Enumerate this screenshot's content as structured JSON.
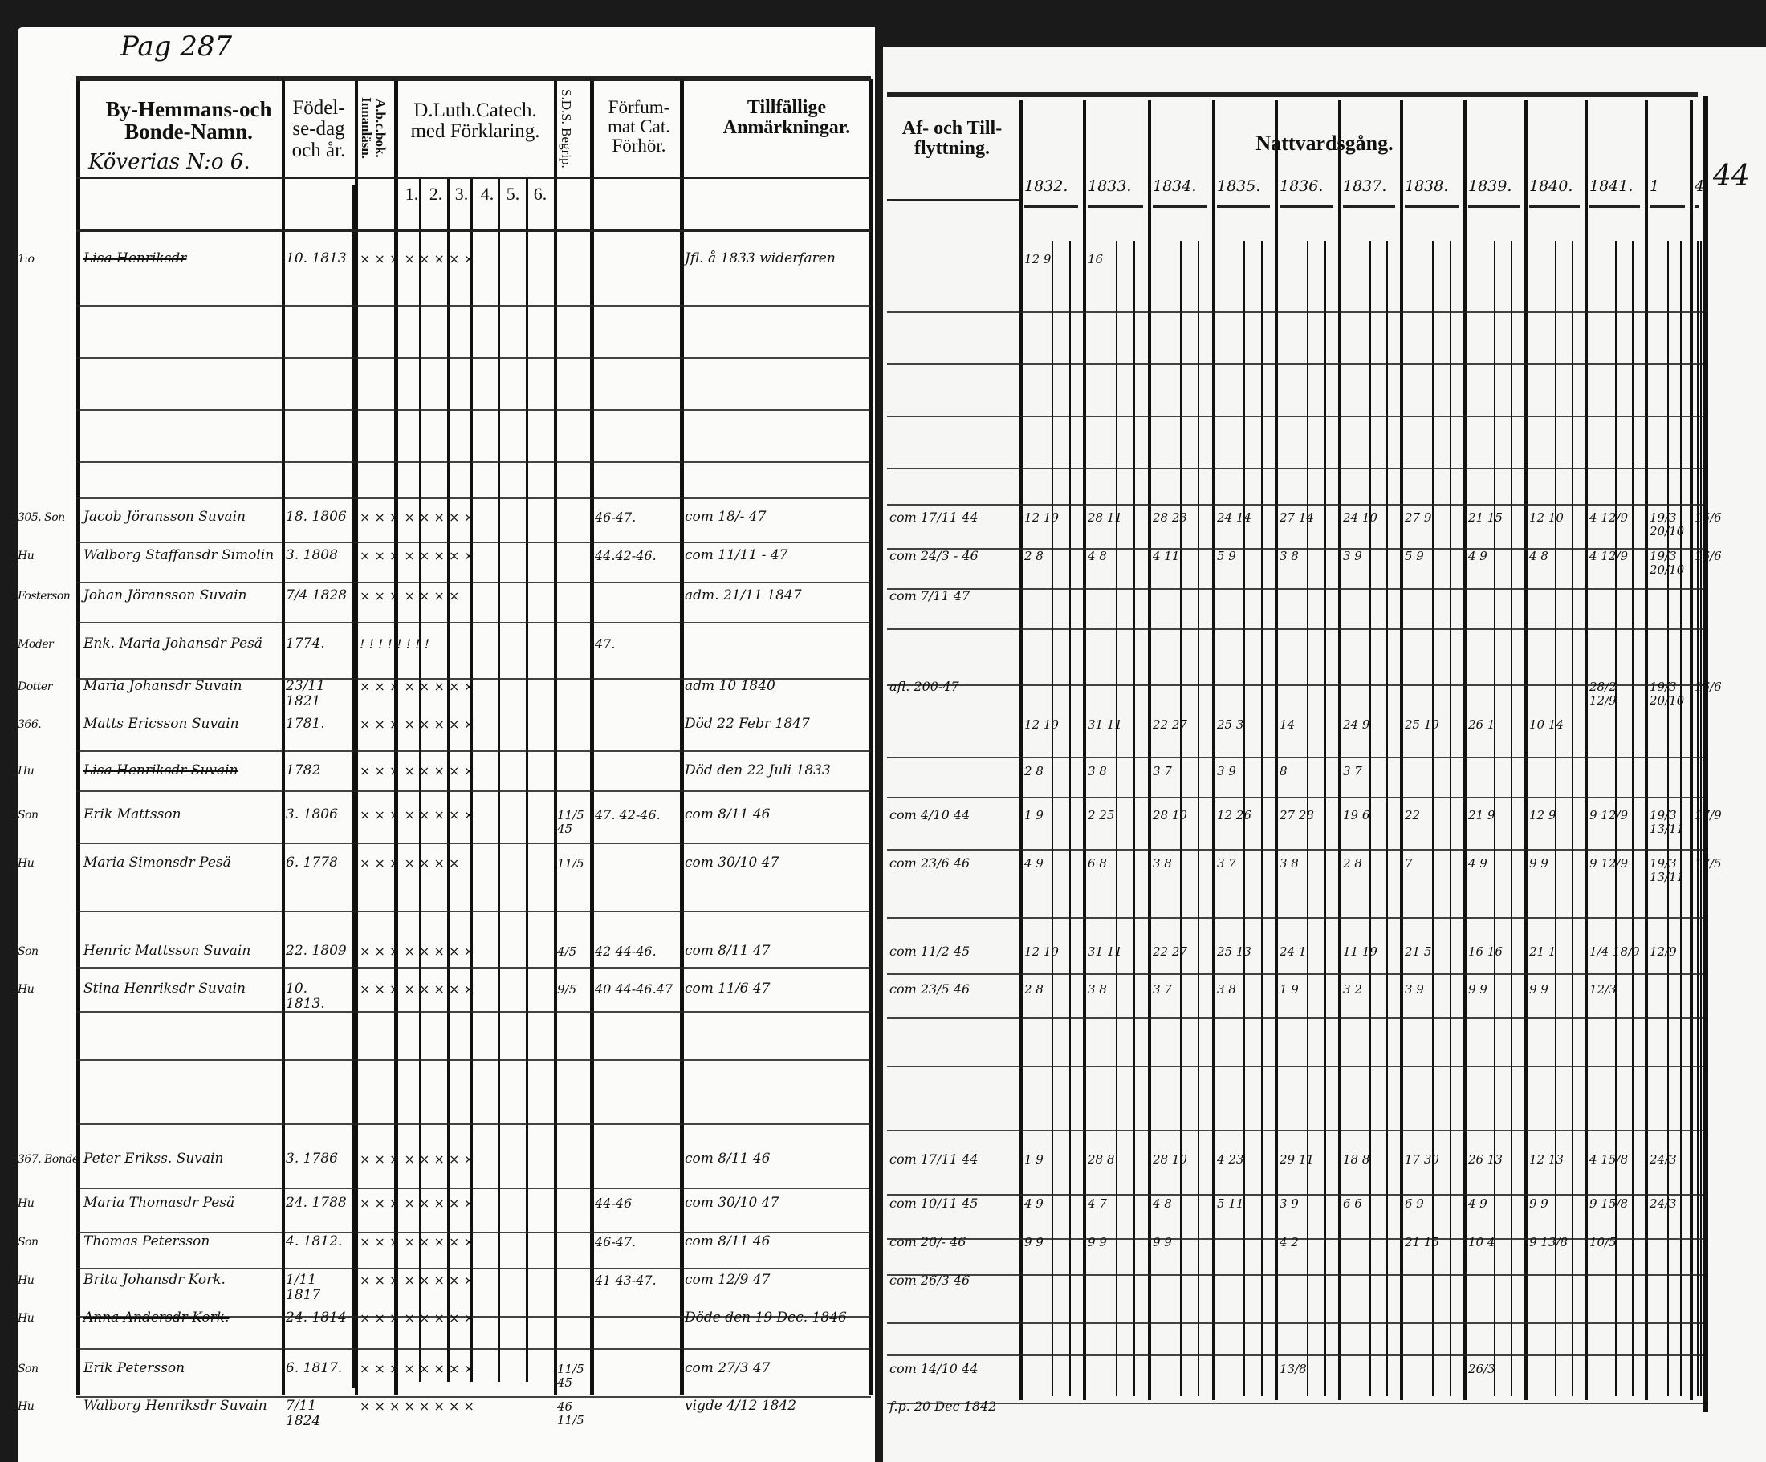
{
  "left_page": {
    "page_number": "Pag 287",
    "village": "Köverias N:o 6.",
    "headers": {
      "names": "By-Hemmans-och Bonde-Namn.",
      "birth": "Födel-se-dag och år.",
      "abc": "A.b.c.bok. Innanläsn.",
      "catechism": "D.Luth.Catech. med Förklaring.",
      "catechism_parts": [
        "1.",
        "2.",
        "3.",
        "4.",
        "5.",
        "6."
      ],
      "sds": "S.D.S. Begrip.",
      "forhor": "Förfum-mat Cat. Förhör.",
      "remarks": "Tillfällige Anmärkningar."
    }
  },
  "right_page": {
    "headers": {
      "moves": "Af- och Till-flyttning.",
      "communion": "Nattvardsgång.",
      "years": [
        "1832.",
        "1833.",
        "1834.",
        "1835.",
        "1836.",
        "1837.",
        "1838.",
        "1839.",
        "1840.",
        "1841.",
        "1",
        "4"
      ],
      "corner": "44"
    }
  },
  "rows": [
    {
      "margin": "1:o",
      "name": "Lisa Henriksdr",
      "crossed": true,
      "birth": "10. 1813",
      "marks": "× ×  ×  ×  ×  ×  ×  ×",
      "sds": "",
      "forhor": "",
      "remark": "Jfl. å 1833 widerfaren",
      "moves": "",
      "communion": [
        "12 9",
        "16"
      ]
    },
    {
      "margin": "305. Son",
      "name": "Jacob Jöransson Suvain",
      "crossed": false,
      "birth": "18. 1806",
      "marks": "× ×  ×  ×  ×  ×  ×  ×",
      "sds": "",
      "forhor": "46-47.",
      "remark": "com 18/- 47",
      "moves": "com 17/11 44",
      "communion": [
        "12 19",
        "28 11",
        "28 23",
        "24 14",
        "27 14",
        "24 10",
        "27 9",
        "21 15",
        "12 10",
        "4 12/9",
        "19/3 20/10",
        "16/6"
      ]
    },
    {
      "margin": "Hu",
      "name": "Walborg Staffansdr Simolin",
      "crossed": false,
      "birth": "3. 1808",
      "marks": "× ×  ×  ×  ×  ×  ×  ×",
      "sds": "",
      "forhor": "44.42-46.",
      "remark": "com 11/11 - 47",
      "moves": "com 24/3 - 46",
      "communion": [
        "2 8",
        "4 8",
        "4 11",
        "5 9",
        "3 8",
        "3 9",
        "5 9",
        "4 9",
        "4 8",
        "4 12/9",
        "19/3 20/10",
        "16/6"
      ]
    },
    {
      "margin": "Fosterson",
      "name": "Johan Jöransson Suvain",
      "crossed": false,
      "birth": "7/4 1828",
      "marks": "× ×  ×  ×  ×  ×  ×",
      "sds": "",
      "forhor": "",
      "remark": "adm. 21/11 1847",
      "moves": "com 7/11 47",
      "communion": []
    },
    {
      "margin": "Moder",
      "name": "Enk. Maria Johansdr Pesä",
      "crossed": false,
      "birth": "1774.",
      "marks": "! !  !  !  !  !  !  !",
      "sds": "",
      "forhor": "47.",
      "remark": "",
      "moves": "",
      "communion": []
    },
    {
      "margin": "Dotter",
      "name": "Maria Johansdr Suvain",
      "crossed": false,
      "birth": "23/11 1821",
      "marks": "× ×  ×  ×  ×  ×  ×  ×",
      "sds": "",
      "forhor": "",
      "remark": "adm 10 1840",
      "moves": "afl. 200-47",
      "communion": [
        "",
        "",
        "",
        "",
        "",
        "",
        "",
        "",
        "",
        "28/2 12/9",
        "19/3 20/10",
        "16/6"
      ]
    },
    {
      "margin": "366.",
      "name": "Matts Ericsson Suvain",
      "crossed": false,
      "birth": "1781.",
      "marks": "× ×  ×  ×  ×  ×  ×  ×",
      "sds": "",
      "forhor": "",
      "remark": "Död 22 Febr 1847",
      "moves": "",
      "communion": [
        "12 19",
        "31 11",
        "22 27",
        "25 3",
        "14",
        "24 9",
        "25 19",
        "26 1",
        "10 14"
      ]
    },
    {
      "margin": "Hu",
      "name": "Lisa Henriksdr Suvain",
      "crossed": true,
      "birth": "1782",
      "marks": "× ×  ×  ×  ×  ×  ×  ×",
      "sds": "",
      "forhor": "",
      "remark": "Död den 22 Juli 1833",
      "moves": "",
      "communion": [
        "2 8",
        "3 8",
        "3 7",
        "3 9",
        "8",
        "3 7"
      ]
    },
    {
      "margin": "Son",
      "name": "Erik Mattsson",
      "crossed": false,
      "birth": "3. 1806",
      "marks": "× ×  ×  ×  ×  ×  ×  ×",
      "sds": "11/5 45",
      "forhor": "47. 42-46.",
      "remark": "com 8/11 46",
      "moves": "com 4/10 44",
      "communion": [
        "1 9",
        "2 25",
        "28 10",
        "12 26",
        "27 28",
        "19 6",
        "22",
        "21 9",
        "12 9",
        "9 12/9",
        "19/3 13/11",
        "17/9"
      ]
    },
    {
      "margin": "Hu",
      "name": "Maria Simonsdr Pesä",
      "crossed": false,
      "birth": "6. 1778",
      "marks": "× ×  ×  ×  ×  ×  ×",
      "sds": "11/5",
      "forhor": "",
      "remark": "com 30/10 47",
      "moves": "com 23/6 46",
      "communion": [
        "4 9",
        "6 8",
        "3 8",
        "3 7",
        "3 8",
        "2 8",
        "7",
        "4 9",
        "9 9",
        "9 12/9",
        "19/3 13/11",
        "17/5"
      ]
    },
    {
      "margin": "Son",
      "name": "Henric Mattsson Suvain",
      "crossed": false,
      "birth": "22. 1809",
      "marks": "× ×  ×  ×  ×  ×  ×  ×",
      "sds": "4/5",
      "forhor": "42 44-46.",
      "remark": "com 8/11 47",
      "moves": "com 11/2 45",
      "communion": [
        "12 19",
        "31 11",
        "22 27",
        "25 13",
        "24 1",
        "11 19",
        "21 5",
        "16 16",
        "21 1",
        "1/4 18/9",
        "12/9"
      ]
    },
    {
      "margin": "Hu",
      "name": "Stina Henriksdr Suvain",
      "crossed": false,
      "birth": "10. 1813.",
      "marks": "× ×  ×  ×  ×  ×  ×  ×",
      "sds": "9/5",
      "forhor": "40 44-46.47",
      "remark": "com 11/6 47",
      "moves": "com 23/5 46",
      "communion": [
        "2 8",
        "3 8",
        "3 7",
        "3 8",
        "1 9",
        "3 2",
        "3 9",
        "9 9",
        "9 9",
        "12/3"
      ]
    },
    {
      "margin": "367. Bonde",
      "name": "Peter Erikss. Suvain",
      "crossed": false,
      "birth": "3. 1786",
      "marks": "× ×  ×  ×  ×  ×  ×  ×",
      "sds": "",
      "forhor": "",
      "remark": "com 8/11 46",
      "moves": "com 17/11 44",
      "communion": [
        "1 9",
        "28 8",
        "28 10",
        "4 23",
        "29 11",
        "18 8",
        "17 30",
        "26 13",
        "12 13",
        "4 15/8",
        "24/3"
      ]
    },
    {
      "margin": "Hu",
      "name": "Maria Thomasdr Pesä",
      "crossed": false,
      "birth": "24. 1788",
      "marks": "× ×  ×  ×  ×  ×  ×  ×",
      "sds": "",
      "forhor": "44-46",
      "remark": "com 30/10 47",
      "moves": "com 10/11 45",
      "communion": [
        "4 9",
        "4 7",
        "4 8",
        "5 11",
        "3 9",
        "6 6",
        "6 9",
        "4 9",
        "9 9",
        "9 15/8",
        "24/3"
      ]
    },
    {
      "margin": "Son",
      "name": "Thomas Petersson",
      "crossed": false,
      "birth": "4. 1812.",
      "marks": "× ×  ×  ×  ×  ×  ×  ×",
      "sds": "",
      "forhor": "46-47.",
      "remark": "com 8/11 46",
      "moves": "com 20/- 46",
      "communion": [
        "9 9",
        "9 9",
        "9 9",
        "",
        "4 2",
        "",
        "21 15",
        "10 4",
        "9 13/8",
        "10/5"
      ]
    },
    {
      "margin": "Hu",
      "name": "Brita Johansdr Kork.",
      "crossed": false,
      "birth": "1/11 1817",
      "marks": "× ×  ×  ×  ×  ×  ×  ×",
      "sds": "",
      "forhor": "41 43-47.",
      "remark": "com 12/9 47",
      "moves": "com 26/3 46",
      "communion": []
    },
    {
      "margin": "Hu",
      "name": "Anna Andersdr Kork.",
      "crossed": true,
      "birth": "24. 1814",
      "marks": "× ×  ×  ×  ×  ×  ×  ×",
      "sds": "",
      "forhor": "",
      "remark": "Döde den 19 Dec. 1846",
      "moves": "",
      "communion": []
    },
    {
      "margin": "Son",
      "name": "Erik Petersson",
      "crossed": false,
      "birth": "6. 1817.",
      "marks": "× ×  ×  ×  ×  ×  ×  ×",
      "sds": "11/5 45",
      "forhor": "",
      "remark": "com 27/3 47",
      "moves": "com 14/10 44",
      "communion": [
        "",
        "",
        "",
        "",
        "13/8",
        "",
        "",
        "26/3"
      ]
    },
    {
      "margin": "Hu",
      "name": "Walborg Henriksdr Suvain",
      "crossed": false,
      "birth": "7/11 1824",
      "marks": "× ×  × ×  × ×  × ×",
      "sds": "46 11/5",
      "forhor": "",
      "remark": "vigde 4/12 1842",
      "moves": "f.p. 20 Dec 1842",
      "communion": []
    }
  ]
}
